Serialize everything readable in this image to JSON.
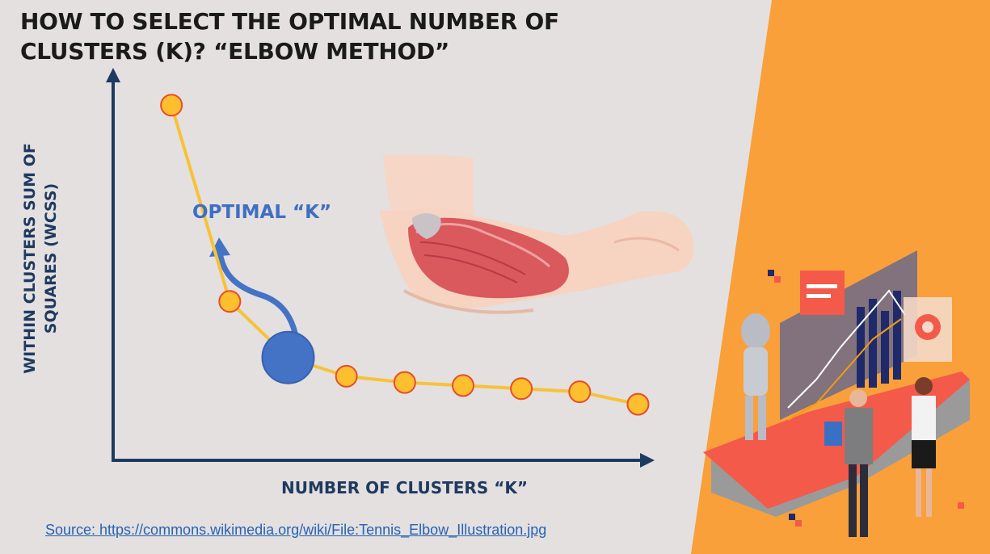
{
  "title": {
    "line1": "HOW TO SELECT THE OPTIMAL NUMBER OF",
    "line2": "CLUSTERS (K)? “ELBOW METHOD”"
  },
  "annotation": {
    "optimal_label": "OPTIMAL “K”",
    "optimal_index": 2
  },
  "source": {
    "text": "Source: https://commons.wikimedia.org/wiki/File:Tennis_Elbow_Illustration.jpg"
  },
  "colors": {
    "line": "#f7c23a",
    "marker_fill": "#fdbf2e",
    "marker_stroke": "#e74c2a",
    "optimal_marker": "#4472c4",
    "axis": "#1f3a60",
    "orange_panel": "#f9a03a",
    "arrow": "#4472c4"
  },
  "chart_data": {
    "type": "line",
    "title": "HOW TO SELECT THE OPTIMAL NUMBER OF CLUSTERS (K)? “ELBOW METHOD”",
    "xlabel": "NUMBER OF CLUSTERS “K”",
    "ylabel": [
      "WITHIN CLUSTERS SUM OF",
      "SQUARES (WCSS)"
    ],
    "x": [
      1,
      2,
      3,
      4,
      5,
      6,
      7,
      8,
      9
    ],
    "y": [
      100,
      37,
      19,
      13,
      11,
      10,
      9,
      8,
      4
    ],
    "xlim": [
      0,
      9.7
    ],
    "ylim": [
      -14,
      112
    ],
    "grid": false,
    "ticks": false
  },
  "illustrations": {
    "elbow": "elbow-anatomy-illustration",
    "robot_scene": "robot-analytics-scene-illustration"
  }
}
